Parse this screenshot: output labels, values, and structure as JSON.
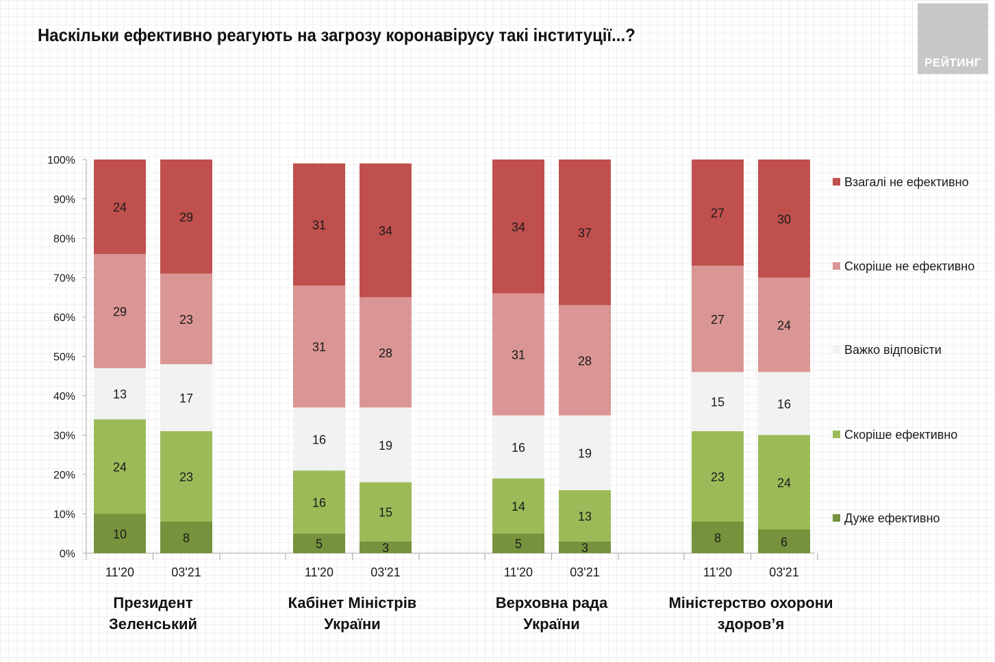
{
  "header": {
    "title": "Наскільки ефективно реагують на загрозу коронавірусу такі інституції...?",
    "logo_text": "РЕЙТИНГ"
  },
  "colors": {
    "very_ineffective": "#c0504d",
    "rather_ineffective": "#da9694",
    "hard_to_say": "#f2f2f2",
    "rather_effective": "#9bbb59",
    "very_effective": "#76923c",
    "axis": "#a6a6a6",
    "text": "#1a1a1a"
  },
  "chart_data": {
    "type": "bar",
    "stacked": true,
    "title": "Наскільки ефективно реагують на загрозу коронавірусу такі інституції...?",
    "ylim": [
      0,
      100
    ],
    "yticks": [
      "0%",
      "10%",
      "20%",
      "30%",
      "40%",
      "50%",
      "60%",
      "70%",
      "80%",
      "90%",
      "100%"
    ],
    "series": [
      {
        "key": "very_effective",
        "name": "Дуже ефективно",
        "color": "#76923c"
      },
      {
        "key": "rather_effective",
        "name": "Скоріше ефективно",
        "color": "#9bbb59"
      },
      {
        "key": "hard_to_say",
        "name": "Важко відповісти",
        "color": "#f2f2f2"
      },
      {
        "key": "rather_ineffective",
        "name": "Скоріше не ефективно",
        "color": "#da9694"
      },
      {
        "key": "very_ineffective",
        "name": "Взагалі не ефективно",
        "color": "#c0504d"
      }
    ],
    "legend_order": [
      "very_ineffective",
      "rather_ineffective",
      "hard_to_say",
      "rather_effective",
      "very_effective"
    ],
    "groups": [
      {
        "label": [
          "Президент",
          "Зеленський"
        ],
        "bars": [
          {
            "period": "11'20",
            "values": [
              10,
              24,
              13,
              29,
              24
            ]
          },
          {
            "period": "03'21",
            "values": [
              8,
              23,
              17,
              23,
              29
            ]
          }
        ]
      },
      {
        "label": [
          "Кабінет Міністрів",
          "України"
        ],
        "bars": [
          {
            "period": "11'20",
            "values": [
              5,
              16,
              16,
              31,
              31
            ]
          },
          {
            "period": "03'21",
            "values": [
              3,
              15,
              19,
              28,
              34
            ]
          }
        ]
      },
      {
        "label": [
          "Верховна рада",
          "України"
        ],
        "bars": [
          {
            "period": "11'20",
            "values": [
              5,
              14,
              16,
              31,
              34
            ]
          },
          {
            "period": "03'21",
            "values": [
              3,
              13,
              19,
              28,
              37
            ]
          }
        ]
      },
      {
        "label": [
          "Міністерство охорони",
          "здоров’я"
        ],
        "bars": [
          {
            "period": "11'20",
            "values": [
              8,
              23,
              15,
              27,
              27
            ]
          },
          {
            "period": "03'21",
            "values": [
              6,
              24,
              16,
              24,
              30
            ]
          }
        ]
      }
    ]
  }
}
